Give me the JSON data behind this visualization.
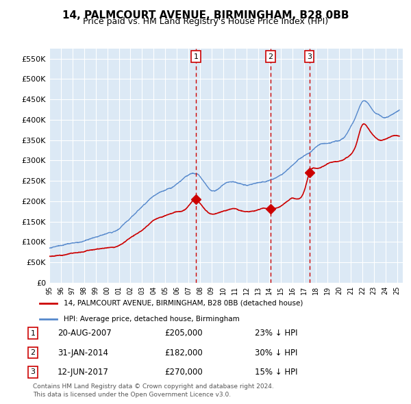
{
  "title": "14, PALMCOURT AVENUE, BIRMINGHAM, B28 0BB",
  "subtitle": "Price paid vs. HM Land Registry's House Price Index (HPI)",
  "ylabel": "",
  "background_color": "#dce9f5",
  "plot_bg_color": "#dce9f5",
  "grid_color": "#ffffff",
  "red_line_color": "#cc0000",
  "blue_line_color": "#5588cc",
  "sale_marker_color": "#cc0000",
  "vline_color": "#cc0000",
  "ylim": [
    0,
    575000
  ],
  "yticks": [
    0,
    50000,
    100000,
    150000,
    200000,
    250000,
    300000,
    350000,
    400000,
    450000,
    500000,
    550000
  ],
  "sale_events": [
    {
      "label": "1",
      "date_num": 2007.64,
      "price": 205000,
      "text": "20-AUG-2007",
      "amount": "£205,000",
      "hpi_diff": "23% ↓ HPI"
    },
    {
      "label": "2",
      "date_num": 2014.08,
      "price": 182000,
      "text": "31-JAN-2014",
      "amount": "£182,000",
      "hpi_diff": "30% ↓ HPI"
    },
    {
      "label": "3",
      "date_num": 2017.44,
      "price": 270000,
      "text": "12-JUN-2017",
      "amount": "£270,000",
      "hpi_diff": "15% ↓ HPI"
    }
  ],
  "legend_property": "14, PALMCOURT AVENUE, BIRMINGHAM, B28 0BB (detached house)",
  "legend_hpi": "HPI: Average price, detached house, Birmingham",
  "footnote": "Contains HM Land Registry data © Crown copyright and database right 2024.\nThis data is licensed under the Open Government Licence v3.0.",
  "xmin": 1995.0,
  "xmax": 2025.5
}
